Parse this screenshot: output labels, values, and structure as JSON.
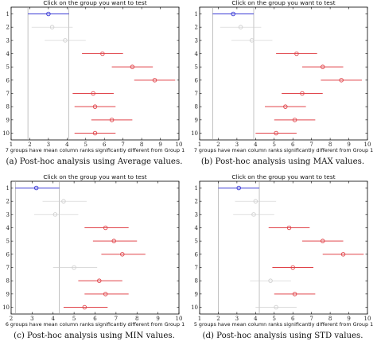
{
  "colors": {
    "selected": "#3b3bd6",
    "different": "#e0444a",
    "same": "#cfcfcf",
    "axis": "#000000"
  },
  "chart_data": [
    {
      "type": "scatter",
      "title": "Click on the group you want to test",
      "xlabel": "7 groups have mean column ranks significantly different from Group 1",
      "caption": "(a) Post-hoc analysis using Average values.",
      "xlim": [
        1,
        10
      ],
      "xticks": [
        "1",
        "2",
        "3",
        "4",
        "5",
        "6",
        "7",
        "8",
        "9",
        "10"
      ],
      "yticks": [
        "1",
        "2",
        "3",
        "4",
        "5",
        "6",
        "7",
        "8",
        "9",
        "10"
      ],
      "selected_group": 1,
      "groups": [
        {
          "group": 1,
          "mean": 3.0,
          "low": 1.9,
          "high": 4.1,
          "status": "selected"
        },
        {
          "group": 2,
          "mean": 3.2,
          "low": 2.1,
          "high": 4.3,
          "status": "same"
        },
        {
          "group": 3,
          "mean": 3.9,
          "low": 2.8,
          "high": 5.0,
          "status": "same"
        },
        {
          "group": 4,
          "mean": 5.9,
          "low": 4.8,
          "high": 7.0,
          "status": "different"
        },
        {
          "group": 5,
          "mean": 7.5,
          "low": 6.4,
          "high": 8.6,
          "status": "different"
        },
        {
          "group": 6,
          "mean": 8.7,
          "low": 7.6,
          "high": 9.8,
          "status": "different"
        },
        {
          "group": 7,
          "mean": 5.4,
          "low": 4.3,
          "high": 6.5,
          "status": "different"
        },
        {
          "group": 8,
          "mean": 5.5,
          "low": 4.4,
          "high": 6.6,
          "status": "different"
        },
        {
          "group": 9,
          "mean": 6.4,
          "low": 5.3,
          "high": 7.5,
          "status": "different"
        },
        {
          "group": 10,
          "mean": 5.5,
          "low": 4.4,
          "high": 6.6,
          "status": "different"
        }
      ]
    },
    {
      "type": "scatter",
      "title": "Click on the group you want to test",
      "xlabel": "7 groups have mean column ranks significantly different from Group 1",
      "caption": "(b) Post-hoc analysis using MAX values.",
      "xlim": [
        1,
        10
      ],
      "xticks": [
        "1",
        "2",
        "3",
        "4",
        "5",
        "6",
        "7",
        "8",
        "9",
        "10"
      ],
      "yticks": [
        "1",
        "2",
        "3",
        "4",
        "5",
        "6",
        "7",
        "8",
        "9",
        "10"
      ],
      "selected_group": 1,
      "groups": [
        {
          "group": 1,
          "mean": 2.8,
          "low": 1.7,
          "high": 3.9,
          "status": "selected"
        },
        {
          "group": 2,
          "mean": 3.2,
          "low": 2.1,
          "high": 4.3,
          "status": "same"
        },
        {
          "group": 3,
          "mean": 3.8,
          "low": 2.7,
          "high": 4.9,
          "status": "same"
        },
        {
          "group": 4,
          "mean": 6.2,
          "low": 5.1,
          "high": 7.3,
          "status": "different"
        },
        {
          "group": 5,
          "mean": 7.6,
          "low": 6.5,
          "high": 8.7,
          "status": "different"
        },
        {
          "group": 6,
          "mean": 8.6,
          "low": 7.5,
          "high": 9.7,
          "status": "different"
        },
        {
          "group": 7,
          "mean": 6.5,
          "low": 5.4,
          "high": 7.6,
          "status": "different"
        },
        {
          "group": 8,
          "mean": 5.6,
          "low": 4.5,
          "high": 6.7,
          "status": "different"
        },
        {
          "group": 9,
          "mean": 6.1,
          "low": 5.0,
          "high": 7.2,
          "status": "different"
        },
        {
          "group": 10,
          "mean": 5.1,
          "low": 4.0,
          "high": 6.2,
          "status": "different"
        }
      ]
    },
    {
      "type": "scatter",
      "title": "Click on the group you want to test",
      "xlabel": "6 groups have mean column ranks significantly different from Group 1",
      "caption": "(c) Post-hoc analysis using MIN values.",
      "xlim": [
        2,
        10
      ],
      "xticks": [
        "2",
        "3",
        "4",
        "5",
        "6",
        "7",
        "8",
        "9",
        "10"
      ],
      "yticks": [
        "1",
        "2",
        "3",
        "4",
        "5",
        "6",
        "7",
        "8",
        "9",
        "10"
      ],
      "selected_group": 1,
      "groups": [
        {
          "group": 1,
          "mean": 3.2,
          "low": 2.2,
          "high": 4.3,
          "status": "selected"
        },
        {
          "group": 2,
          "mean": 4.5,
          "low": 3.5,
          "high": 5.6,
          "status": "same"
        },
        {
          "group": 3,
          "mean": 4.1,
          "low": 3.1,
          "high": 5.2,
          "status": "same"
        },
        {
          "group": 4,
          "mean": 6.5,
          "low": 5.5,
          "high": 7.6,
          "status": "different"
        },
        {
          "group": 5,
          "mean": 6.9,
          "low": 5.9,
          "high": 8.0,
          "status": "different"
        },
        {
          "group": 6,
          "mean": 7.3,
          "low": 6.3,
          "high": 8.4,
          "status": "different"
        },
        {
          "group": 7,
          "mean": 5.0,
          "low": 4.0,
          "high": 6.1,
          "status": "same"
        },
        {
          "group": 8,
          "mean": 6.2,
          "low": 5.2,
          "high": 7.3,
          "status": "different"
        },
        {
          "group": 9,
          "mean": 6.5,
          "low": 5.5,
          "high": 7.6,
          "status": "different"
        },
        {
          "group": 10,
          "mean": 5.5,
          "low": 4.5,
          "high": 6.6,
          "status": "different"
        }
      ]
    },
    {
      "type": "scatter",
      "title": "Click on the group you want to test",
      "xlabel": "5 groups have mean column ranks significantly different from Group 1",
      "caption": "(d) Post-hoc analysis using STD values.",
      "xlim": [
        1,
        10
      ],
      "xticks": [
        "1",
        "2",
        "3",
        "4",
        "5",
        "6",
        "7",
        "8",
        "9",
        "10"
      ],
      "yticks": [
        "1",
        "2",
        "3",
        "4",
        "5",
        "6",
        "7",
        "8",
        "9",
        "10"
      ],
      "selected_group": 1,
      "groups": [
        {
          "group": 1,
          "mean": 3.1,
          "low": 2.0,
          "high": 4.2,
          "status": "selected"
        },
        {
          "group": 2,
          "mean": 4.0,
          "low": 2.9,
          "high": 5.1,
          "status": "same"
        },
        {
          "group": 3,
          "mean": 3.9,
          "low": 2.8,
          "high": 5.0,
          "status": "same"
        },
        {
          "group": 4,
          "mean": 5.8,
          "low": 4.7,
          "high": 6.9,
          "status": "different"
        },
        {
          "group": 5,
          "mean": 7.6,
          "low": 6.5,
          "high": 8.7,
          "status": "different"
        },
        {
          "group": 6,
          "mean": 8.7,
          "low": 7.6,
          "high": 9.8,
          "status": "different"
        },
        {
          "group": 7,
          "mean": 6.0,
          "low": 4.9,
          "high": 7.1,
          "status": "different"
        },
        {
          "group": 8,
          "mean": 4.8,
          "low": 3.7,
          "high": 5.9,
          "status": "same"
        },
        {
          "group": 9,
          "mean": 6.1,
          "low": 5.0,
          "high": 7.2,
          "status": "different"
        },
        {
          "group": 10,
          "mean": 5.1,
          "low": 4.0,
          "high": 6.2,
          "status": "same"
        }
      ]
    }
  ]
}
